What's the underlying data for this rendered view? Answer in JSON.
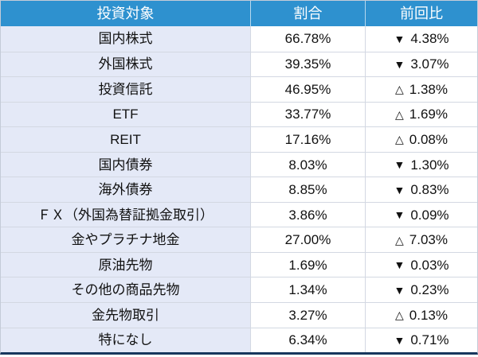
{
  "chart_data": {
    "type": "table",
    "columns": [
      "投資対象",
      "割合",
      "前回比"
    ],
    "rows": [
      {
        "target": "国内株式",
        "ratio_pct": 66.78,
        "change_pct": -4.38
      },
      {
        "target": "外国株式",
        "ratio_pct": 39.35,
        "change_pct": -3.07
      },
      {
        "target": "投資信託",
        "ratio_pct": 46.95,
        "change_pct": 1.38
      },
      {
        "target": "ETF",
        "ratio_pct": 33.77,
        "change_pct": 1.69
      },
      {
        "target": "REIT",
        "ratio_pct": 17.16,
        "change_pct": 0.08
      },
      {
        "target": "国内債券",
        "ratio_pct": 8.03,
        "change_pct": -1.3
      },
      {
        "target": "海外債券",
        "ratio_pct": 8.85,
        "change_pct": -0.83
      },
      {
        "target": "ＦＸ（外国為替証拠金取引）",
        "ratio_pct": 3.86,
        "change_pct": -0.09
      },
      {
        "target": "金やプラチナ地金",
        "ratio_pct": 27.0,
        "change_pct": 7.03
      },
      {
        "target": "原油先物",
        "ratio_pct": 1.69,
        "change_pct": -0.03
      },
      {
        "target": "その他の商品先物",
        "ratio_pct": 1.34,
        "change_pct": -0.23
      },
      {
        "target": "金先物取引",
        "ratio_pct": 3.27,
        "change_pct": 0.13
      },
      {
        "target": "特になし",
        "ratio_pct": 6.34,
        "change_pct": -0.71
      }
    ]
  },
  "table": {
    "columns": [
      {
        "label": "投資対象"
      },
      {
        "label": "割合"
      },
      {
        "label": "前回比"
      }
    ],
    "rows": [
      {
        "target": "国内株式",
        "ratio": "66.78%",
        "direction": "down",
        "symbol": "▼",
        "change": "4.38%"
      },
      {
        "target": "外国株式",
        "ratio": "39.35%",
        "direction": "down",
        "symbol": "▼",
        "change": "3.07%"
      },
      {
        "target": "投資信託",
        "ratio": "46.95%",
        "direction": "up",
        "symbol": "△",
        "change": "1.38%"
      },
      {
        "target": "ETF",
        "ratio": "33.77%",
        "direction": "up",
        "symbol": "△",
        "change": "1.69%"
      },
      {
        "target": "REIT",
        "ratio": "17.16%",
        "direction": "up",
        "symbol": "△",
        "change": "0.08%"
      },
      {
        "target": "国内債券",
        "ratio": "8.03%",
        "direction": "down",
        "symbol": "▼",
        "change": "1.30%"
      },
      {
        "target": "海外債券",
        "ratio": "8.85%",
        "direction": "down",
        "symbol": "▼",
        "change": "0.83%"
      },
      {
        "target": "ＦＸ（外国為替証拠金取引）",
        "ratio": "3.86%",
        "direction": "down",
        "symbol": "▼",
        "change": "0.09%"
      },
      {
        "target": "金やプラチナ地金",
        "ratio": "27.00%",
        "direction": "up",
        "symbol": "△",
        "change": "7.03%"
      },
      {
        "target": "原油先物",
        "ratio": "1.69%",
        "direction": "down",
        "symbol": "▼",
        "change": "0.03%"
      },
      {
        "target": "その他の商品先物",
        "ratio": "1.34%",
        "direction": "down",
        "symbol": "▼",
        "change": "0.23%"
      },
      {
        "target": "金先物取引",
        "ratio": "3.27%",
        "direction": "up",
        "symbol": "△",
        "change": "0.13%"
      },
      {
        "target": "特になし",
        "ratio": "6.34%",
        "direction": "down",
        "symbol": "▼",
        "change": "0.71%"
      }
    ]
  },
  "colors": {
    "header_bg": "#2E91CF",
    "header_text": "#FFFFFF",
    "row_label_bg": "#E4E9F7",
    "row_value_bg": "#FFFFFF",
    "grid_line": "#D3D8E2",
    "outer_border": "#C4CBD8",
    "bottom_accent": "#17375D",
    "body_text": "#111111"
  }
}
